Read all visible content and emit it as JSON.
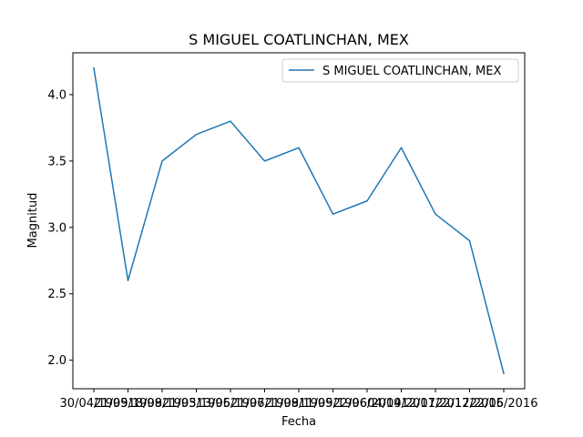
{
  "chart_data": {
    "type": "line",
    "title": "S MIGUEL COATLINCHAN, MEX",
    "xlabel": "Fecha",
    "ylabel": "Magnitud",
    "categories": [
      "30/04/1995",
      "21/09/1998",
      "18/09/1993",
      "21/05/1995",
      "13/06/1996",
      "21/07/1998",
      "21/09/1999",
      "11/05/1996",
      "22/06/2014",
      "04/09/2017",
      "12/01/2017",
      "22/12/2016",
      "22/05/2016"
    ],
    "series": [
      {
        "name": "S MIGUEL COATLINCHAN, MEX",
        "values": [
          4.2,
          2.6,
          3.5,
          3.7,
          3.8,
          3.5,
          3.6,
          3.1,
          3.2,
          3.6,
          3.1,
          2.9,
          1.9
        ]
      }
    ],
    "ylim": [
      1.785,
      4.315
    ],
    "yticks": [
      2.0,
      2.5,
      3.0,
      3.5,
      4.0
    ],
    "ytick_labels": [
      "2.0",
      "2.5",
      "3.0",
      "3.5",
      "4.0"
    ],
    "grid": false,
    "legend_position": "top-right",
    "line_color": "#1f77b4"
  }
}
